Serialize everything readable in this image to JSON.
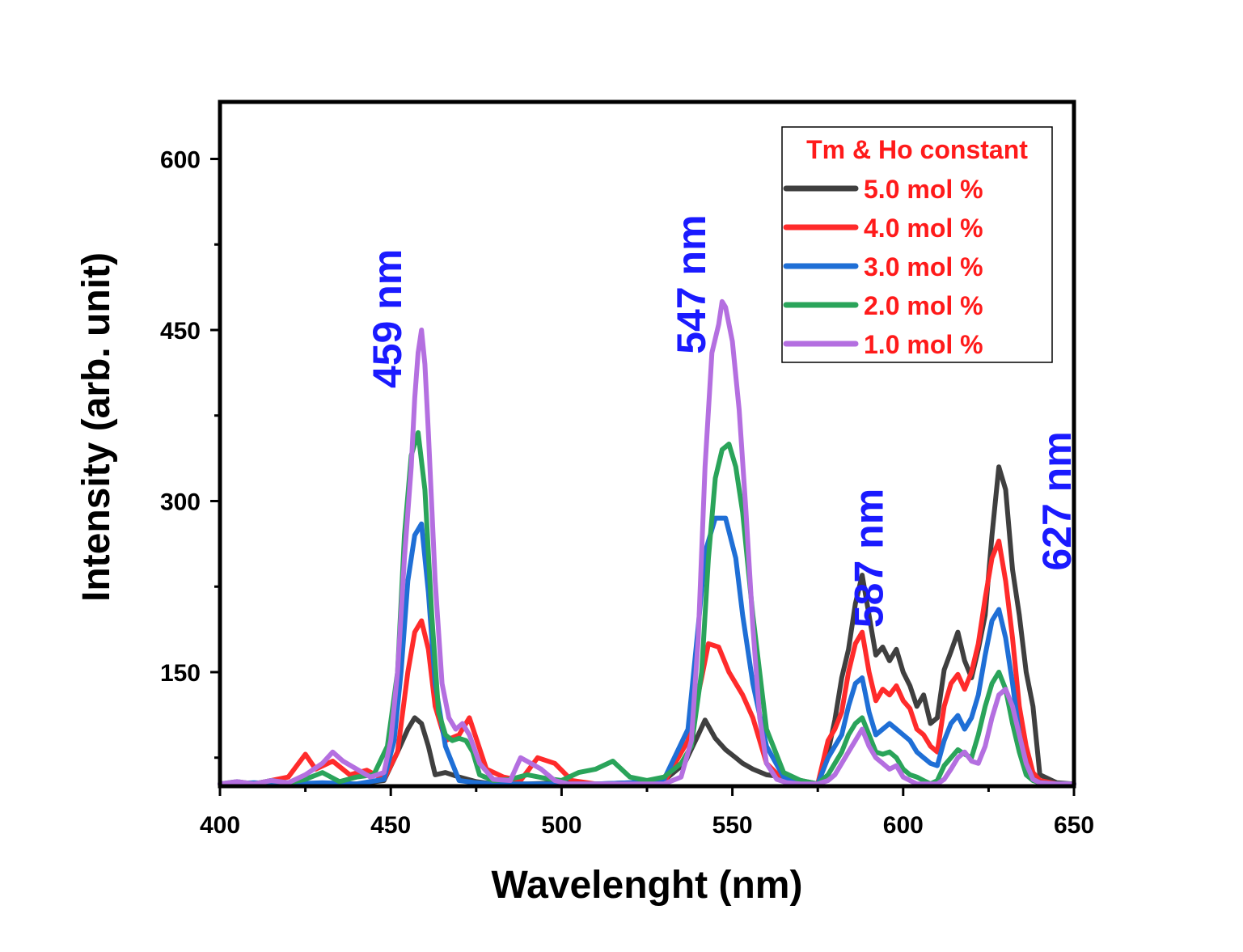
{
  "chart_data": {
    "type": "line",
    "title": "",
    "xlabel": "Wavelenght (nm)",
    "ylabel": "Intensity (arb. unit)",
    "xlim": [
      400,
      650
    ],
    "ylim": [
      50,
      650
    ],
    "xticks": [
      400,
      450,
      500,
      550,
      600,
      650
    ],
    "yticks": [
      150,
      300,
      450,
      600
    ],
    "grid": false,
    "legend": {
      "title": "Tm & Ho constant",
      "placement": "top-right",
      "title_color": "#ff1a1a",
      "label_color": "#ff1a1a"
    },
    "annotations": [
      {
        "text": "459 nm",
        "x": 453,
        "y": 460,
        "color": "#1a1aff"
      },
      {
        "text": "547 nm",
        "x": 542,
        "y": 490,
        "color": "#1a1aff"
      },
      {
        "text": "587 nm",
        "x": 594,
        "y": 250,
        "color": "#1a1aff"
      },
      {
        "text": "627 nm",
        "x": 649,
        "y": 300,
        "color": "#1a1aff"
      }
    ],
    "series": [
      {
        "name": "5.0 mol %",
        "color": "#3f3f3f",
        "x": [
          400,
          410,
          420,
          430,
          440,
          448,
          452,
          455,
          457,
          459,
          461,
          463,
          466,
          470,
          475,
          480,
          490,
          500,
          510,
          520,
          530,
          536,
          540,
          542,
          545,
          548,
          551,
          553,
          556,
          560,
          565,
          570,
          575,
          578,
          580,
          582,
          584,
          586,
          588,
          590,
          592,
          594,
          596,
          598,
          600,
          602,
          604,
          606,
          608,
          610,
          612,
          614,
          616,
          618,
          620,
          622,
          624,
          626,
          628,
          630,
          632,
          634,
          636,
          638,
          640,
          645,
          650
        ],
        "y": [
          52,
          52,
          53,
          52,
          52,
          55,
          80,
          100,
          110,
          105,
          85,
          60,
          62,
          58,
          54,
          52,
          52,
          53,
          52,
          53,
          55,
          70,
          95,
          108,
          92,
          82,
          75,
          70,
          65,
          60,
          58,
          55,
          52,
          80,
          108,
          145,
          170,
          210,
          235,
          200,
          165,
          172,
          160,
          170,
          150,
          138,
          120,
          130,
          105,
          110,
          152,
          168,
          185,
          160,
          145,
          170,
          200,
          270,
          330,
          310,
          240,
          200,
          150,
          120,
          60,
          53,
          52
        ]
      },
      {
        "name": "4.0 mol %",
        "color": "#ff2b2b",
        "x": [
          400,
          410,
          420,
          425,
          428,
          433,
          438,
          443,
          448,
          452,
          455,
          457,
          459,
          461,
          463,
          466,
          470,
          473,
          478,
          483,
          488,
          493,
          498,
          503,
          510,
          520,
          530,
          537,
          541,
          543,
          546,
          549,
          553,
          556,
          560,
          565,
          570,
          575,
          578,
          580,
          582,
          584,
          586,
          588,
          590,
          592,
          594,
          596,
          598,
          600,
          602,
          604,
          606,
          608,
          610,
          612,
          614,
          616,
          618,
          620,
          622,
          624,
          626,
          628,
          630,
          632,
          634,
          636,
          638,
          640,
          645,
          650
        ],
        "y": [
          52,
          52,
          58,
          78,
          65,
          72,
          60,
          64,
          56,
          80,
          150,
          185,
          195,
          170,
          120,
          90,
          95,
          110,
          65,
          58,
          55,
          75,
          70,
          55,
          52,
          52,
          53,
          90,
          145,
          175,
          172,
          150,
          130,
          110,
          70,
          55,
          52,
          52,
          90,
          100,
          115,
          150,
          175,
          185,
          150,
          125,
          135,
          130,
          138,
          125,
          118,
          100,
          95,
          85,
          80,
          120,
          140,
          148,
          135,
          150,
          175,
          215,
          250,
          265,
          230,
          180,
          120,
          85,
          62,
          55,
          52,
          52
        ]
      },
      {
        "name": "3.0 mol %",
        "color": "#1f6fd6",
        "x": [
          400,
          410,
          420,
          430,
          440,
          448,
          451,
          453,
          455,
          457,
          459,
          461,
          463,
          466,
          470,
          475,
          480,
          490,
          500,
          510,
          520,
          530,
          537,
          540,
          542,
          545,
          548,
          551,
          553,
          556,
          560,
          565,
          570,
          575,
          578,
          580,
          582,
          584,
          586,
          588,
          590,
          592,
          594,
          596,
          598,
          600,
          602,
          604,
          606,
          608,
          610,
          612,
          614,
          616,
          618,
          620,
          622,
          624,
          626,
          628,
          630,
          632,
          634,
          636,
          638,
          640,
          645,
          650
        ],
        "y": [
          52,
          53,
          52,
          53,
          52,
          56,
          90,
          150,
          230,
          270,
          280,
          220,
          140,
          85,
          55,
          53,
          52,
          52,
          52,
          52,
          53,
          56,
          100,
          190,
          255,
          285,
          285,
          250,
          200,
          140,
          85,
          58,
          53,
          52,
          75,
          85,
          95,
          120,
          140,
          145,
          115,
          95,
          100,
          105,
          100,
          95,
          90,
          80,
          75,
          70,
          68,
          90,
          105,
          112,
          100,
          110,
          130,
          165,
          195,
          205,
          180,
          140,
          95,
          70,
          56,
          53,
          52,
          52
        ]
      },
      {
        "name": "2.0 mol %",
        "color": "#2aa45a",
        "x": [
          400,
          405,
          410,
          415,
          420,
          425,
          430,
          435,
          440,
          445,
          449,
          452,
          454,
          456,
          458,
          460,
          462,
          464,
          466,
          468,
          470,
          472,
          474,
          476,
          480,
          485,
          490,
          495,
          500,
          505,
          510,
          515,
          520,
          525,
          530,
          535,
          538,
          541,
          543,
          545,
          547,
          549,
          551,
          553,
          556,
          560,
          565,
          570,
          575,
          578,
          580,
          582,
          584,
          586,
          588,
          590,
          592,
          594,
          596,
          598,
          600,
          602,
          604,
          606,
          608,
          610,
          612,
          614,
          616,
          618,
          620,
          622,
          624,
          626,
          628,
          630,
          632,
          634,
          636,
          638,
          640,
          645,
          650
        ],
        "y": [
          52,
          54,
          52,
          55,
          53,
          56,
          62,
          54,
          58,
          60,
          85,
          150,
          270,
          340,
          360,
          310,
          200,
          115,
          95,
          90,
          92,
          90,
          80,
          60,
          55,
          56,
          60,
          57,
          55,
          62,
          65,
          72,
          58,
          55,
          58,
          70,
          85,
          150,
          250,
          320,
          345,
          350,
          330,
          290,
          200,
          100,
          62,
          55,
          52,
          60,
          70,
          80,
          95,
          105,
          110,
          95,
          80,
          78,
          80,
          75,
          65,
          60,
          58,
          55,
          52,
          55,
          68,
          75,
          82,
          78,
          75,
          95,
          120,
          140,
          150,
          135,
          105,
          80,
          60,
          55,
          53,
          52,
          52
        ]
      },
      {
        "name": "1.0 mol %",
        "color": "#b46fe0",
        "x": [
          400,
          405,
          410,
          415,
          420,
          425,
          430,
          433,
          436,
          440,
          444,
          448,
          450,
          452,
          454,
          456,
          457,
          458,
          459,
          460,
          461,
          463,
          465,
          467,
          469,
          471,
          473,
          476,
          480,
          485,
          488,
          491,
          494,
          498,
          502,
          510,
          520,
          530,
          535,
          538,
          540,
          542,
          544,
          546,
          547,
          548,
          550,
          552,
          554,
          556,
          558,
          560,
          563,
          566,
          570,
          575,
          578,
          580,
          582,
          584,
          586,
          588,
          590,
          592,
          594,
          596,
          598,
          600,
          602,
          604,
          606,
          608,
          610,
          612,
          614,
          616,
          618,
          620,
          622,
          624,
          626,
          628,
          630,
          632,
          634,
          636,
          638,
          640,
          645,
          650
        ],
        "y": [
          52,
          54,
          52,
          55,
          53,
          60,
          70,
          80,
          72,
          65,
          58,
          62,
          90,
          150,
          250,
          330,
          390,
          430,
          450,
          420,
          360,
          230,
          140,
          110,
          100,
          105,
          95,
          70,
          56,
          55,
          75,
          70,
          65,
          55,
          52,
          52,
          52,
          52,
          58,
          90,
          180,
          330,
          430,
          455,
          475,
          470,
          440,
          380,
          290,
          190,
          110,
          70,
          56,
          53,
          52,
          52,
          55,
          60,
          70,
          80,
          90,
          100,
          85,
          75,
          70,
          65,
          68,
          58,
          55,
          52,
          52,
          52,
          52,
          56,
          65,
          75,
          80,
          72,
          70,
          85,
          110,
          130,
          135,
          120,
          95,
          70,
          56,
          53,
          52,
          52
        ]
      }
    ]
  }
}
